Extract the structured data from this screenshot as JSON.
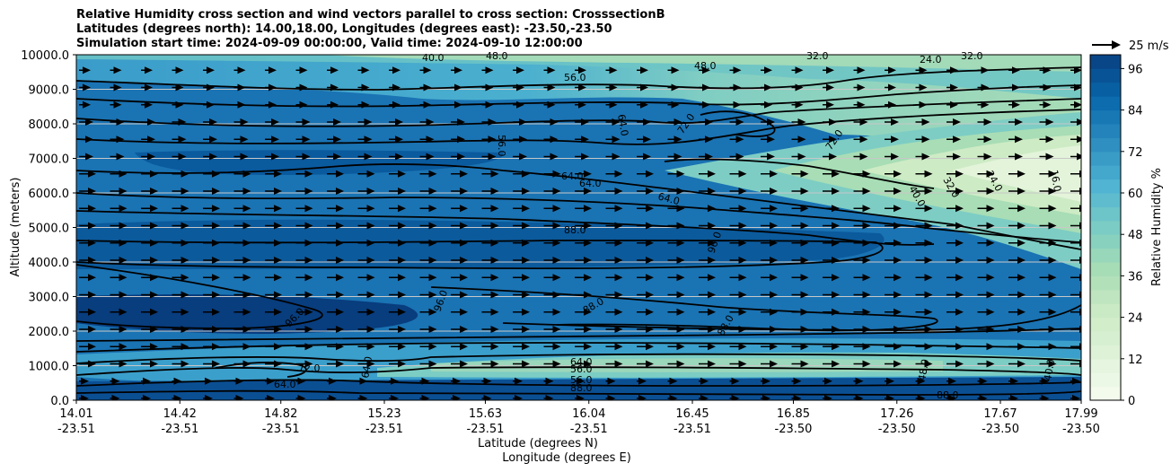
{
  "chart_data": {
    "type": "contour",
    "title_lines": [
      "Relative Humidity cross section and wind vectors parallel to cross section: CrosssectionB",
      "Latitudes (degrees north): 14.00,18.00, Longitudes (degrees east): -23.50,-23.50",
      "Simulation start time: 2024-09-09 00:00:00, Valid time: 2024-09-10 12:00:00"
    ],
    "xlabel": "Latitude (degrees N)",
    "xlabel2": "Longitude (degrees E)",
    "ylabel": "Altitude (meters)",
    "xlim": [
      14.01,
      17.99
    ],
    "ylim": [
      0,
      10000
    ],
    "x_ticks": [
      {
        "lat": "14.01",
        "lon": "-23.51",
        "v": 14.01
      },
      {
        "lat": "14.42",
        "lon": "-23.51",
        "v": 14.42
      },
      {
        "lat": "14.82",
        "lon": "-23.51",
        "v": 14.82
      },
      {
        "lat": "15.23",
        "lon": "-23.51",
        "v": 15.23
      },
      {
        "lat": "15.63",
        "lon": "-23.51",
        "v": 15.63
      },
      {
        "lat": "16.04",
        "lon": "-23.51",
        "v": 16.04
      },
      {
        "lat": "16.45",
        "lon": "-23.51",
        "v": 16.45
      },
      {
        "lat": "16.85",
        "lon": "-23.50",
        "v": 16.85
      },
      {
        "lat": "17.26",
        "lon": "-23.50",
        "v": 17.26
      },
      {
        "lat": "17.67",
        "lon": "-23.50",
        "v": 17.67
      },
      {
        "lat": "17.99",
        "lon": "-23.50",
        "v": 17.99
      }
    ],
    "y_ticks": [
      {
        "label": "0.0",
        "v": 0
      },
      {
        "label": "1000.0",
        "v": 1000
      },
      {
        "label": "2000.0",
        "v": 2000
      },
      {
        "label": "3000.0",
        "v": 3000
      },
      {
        "label": "4000.0",
        "v": 4000
      },
      {
        "label": "5000.0",
        "v": 5000
      },
      {
        "label": "6000.0",
        "v": 6000
      },
      {
        "label": "7000.0",
        "v": 7000
      },
      {
        "label": "8000.0",
        "v": 8000
      },
      {
        "label": "9000.0",
        "v": 9000
      },
      {
        "label": "10000.0",
        "v": 10000
      }
    ],
    "grid": "horizontal",
    "colorbar": {
      "label": "Relative Humidity %",
      "min": 0,
      "max": 100,
      "ticks": [
        "0",
        "12",
        "24",
        "36",
        "48",
        "60",
        "72",
        "84",
        "96"
      ],
      "colors": [
        "#f7fcf0",
        "#e0f3db",
        "#ccebc5",
        "#a8ddb5",
        "#7bccc4",
        "#4eb3d3",
        "#2b8cbe",
        "#0868ac",
        "#084081"
      ]
    },
    "quiver_key": {
      "label": "25 m/s"
    },
    "contour_labels": [
      "40.0",
      "48.0",
      "56.0",
      "48.0",
      "32.0",
      "24.0",
      "32.0",
      "64.0",
      "72.0",
      "56.0",
      "72.0",
      "64.0",
      "64.0",
      "64.0",
      "40.0",
      "32.0",
      "24.0",
      "16.0",
      "88.0",
      "96.0",
      "96.0",
      "96.0",
      "88.0",
      "88.0",
      "72.0",
      "64.0",
      "64.0",
      "56.0",
      "56.0",
      "88.0",
      "88.0",
      "48.0",
      "40.0",
      "64.0"
    ]
  }
}
